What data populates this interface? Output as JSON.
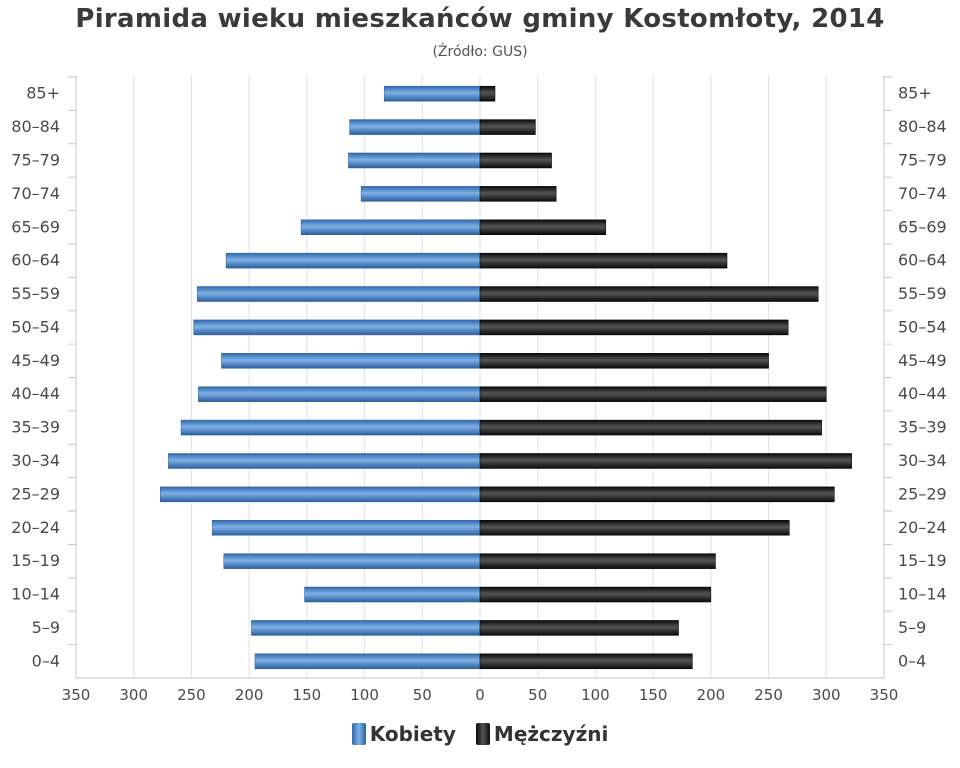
{
  "chart_data": {
    "type": "bar",
    "orientation": "horizontal-pyramid",
    "title": "Piramida wieku mieszkańców gminy Kostomłoty, 2014",
    "subtitle": "(Źródło: GUS)",
    "categories": [
      "0–4",
      "5–9",
      "10–14",
      "15–19",
      "20–24",
      "25–29",
      "30–34",
      "35–39",
      "40–44",
      "45–49",
      "50–54",
      "55–59",
      "60–64",
      "65–69",
      "70–74",
      "75–79",
      "80–84",
      "85+"
    ],
    "series": [
      {
        "name": "Kobiety",
        "color": "#3f7fc6",
        "values": [
          195,
          198,
          152,
          222,
          232,
          277,
          270,
          259,
          244,
          224,
          248,
          245,
          220,
          155,
          103,
          114,
          113,
          83
        ]
      },
      {
        "name": "Mężczyźni",
        "color": "#1e1e1e",
        "values": [
          184,
          172,
          200,
          204,
          268,
          307,
          322,
          296,
          300,
          250,
          267,
          293,
          214,
          109,
          66,
          62,
          48,
          13
        ]
      }
    ],
    "x_ticks": [
      "350",
      "300",
      "250",
      "200",
      "150",
      "100",
      "50",
      "0",
      "50",
      "100",
      "150",
      "200",
      "250",
      "300",
      "350"
    ],
    "xlim": [
      -350,
      350
    ],
    "grid": true,
    "legend_position": "bottom"
  }
}
